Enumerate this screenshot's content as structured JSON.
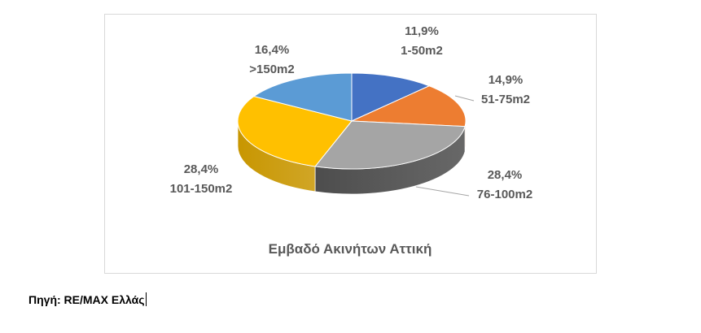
{
  "chart_data": {
    "type": "pie",
    "title": "Εμβαδό Ακινήτων Αττική",
    "slices": [
      {
        "category": "1-50m2",
        "value": 11.9,
        "label": "11,9%",
        "color": "#4472C4",
        "side": "#2F528F"
      },
      {
        "category": "51-75m2",
        "value": 14.9,
        "label": "14,9%",
        "color": "#ED7D31",
        "side": "#B45A1E"
      },
      {
        "category": "76-100m2",
        "value": 28.4,
        "label": "28,4%",
        "color": "#A5A5A5",
        "side": "#4D4D4D"
      },
      {
        "category": "101-150m2",
        "value": 28.4,
        "label": "28,4%",
        "color": "#FFC000",
        "side": "#C89600"
      },
      {
        "category": ">150m2",
        "value": 16.4,
        "label": "16,4%",
        "color": "#5B9BD5",
        "side": "#3A70A0"
      }
    ]
  },
  "source": {
    "text": "Πηγή: RE/MAX Ελλάς"
  }
}
